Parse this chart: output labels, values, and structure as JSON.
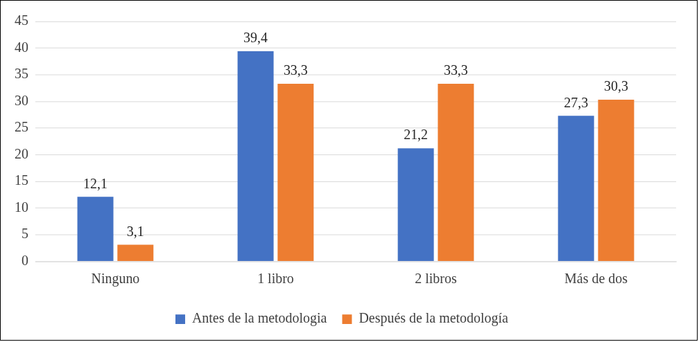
{
  "chart_data": {
    "type": "bar",
    "categories": [
      "Ninguno",
      "1 libro",
      "2 libros",
      "Más de dos"
    ],
    "series": [
      {
        "name": "Antes de la metodologia",
        "color": "#4472c4",
        "values": [
          12.1,
          39.4,
          21.2,
          27.3
        ],
        "value_labels": [
          "12,1",
          "39,4",
          "21,2",
          "27,3"
        ]
      },
      {
        "name": "Después de la metodología",
        "color": "#ed7d31",
        "values": [
          3.1,
          33.3,
          33.3,
          30.3
        ],
        "value_labels": [
          "3,1",
          "33,3",
          "33,3",
          "30,3"
        ]
      }
    ],
    "ylim": [
      0,
      45
    ],
    "yticks": [
      0,
      5,
      10,
      15,
      20,
      25,
      30,
      35,
      40,
      45
    ],
    "grid": "y",
    "legend": "bottom"
  }
}
